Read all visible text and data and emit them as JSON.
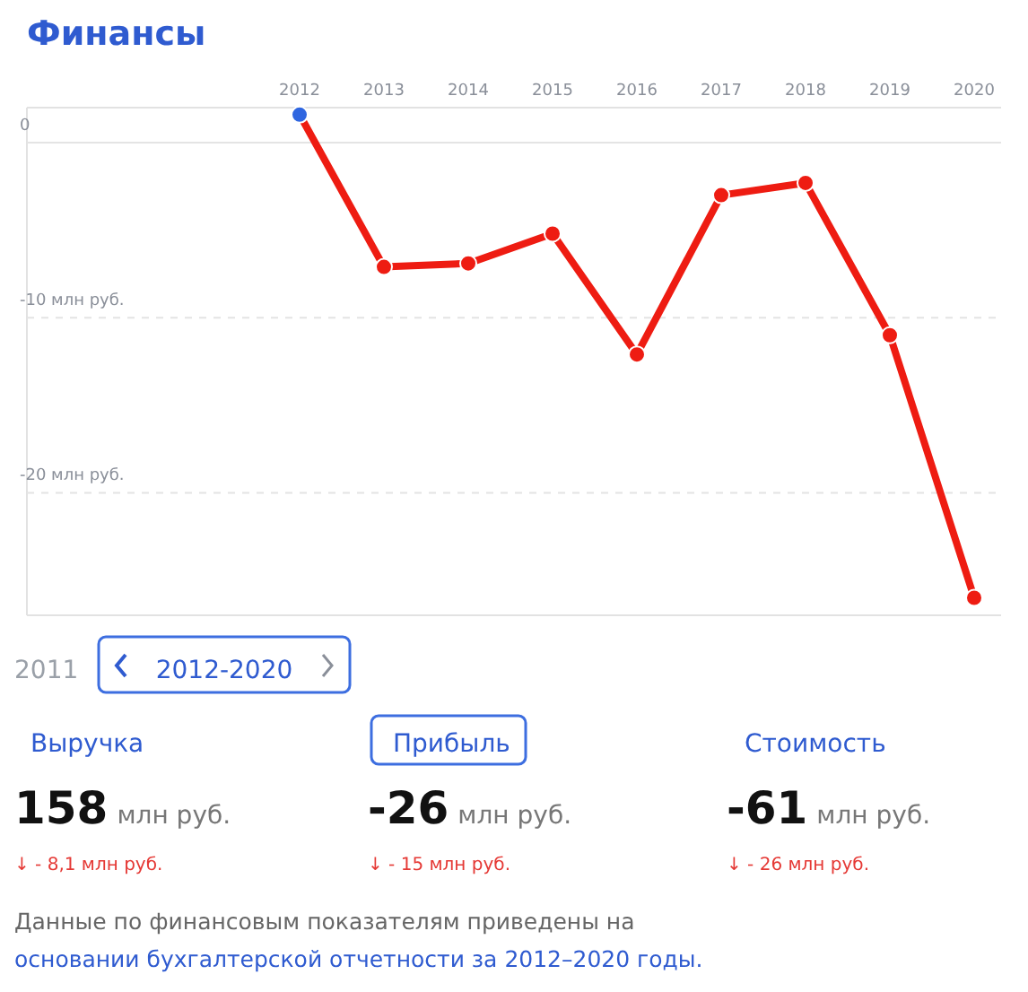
{
  "chart_data": [
    {
      "type": "line",
      "title": "Финансы",
      "categories": [
        "2012",
        "2013",
        "2014",
        "2015",
        "2016",
        "2017",
        "2018",
        "2019",
        "2020"
      ],
      "series": [
        {
          "color": "#ee1c12",
          "colors": [
            "#2f66e0",
            "#ee1c12",
            "#ee1c12",
            "#ee1c12",
            "#ee1c12",
            "#ee1c12",
            "#ee1c12",
            "#ee1c12",
            "#ee1c12"
          ],
          "values": [
            1.6,
            -7.1,
            -6.9,
            -5.2,
            -12.1,
            -3.0,
            -2.3,
            -11.0,
            -26
          ]
        }
      ],
      "ylim": [
        -27,
        2
      ],
      "yticks": [
        {
          "value": 0,
          "label": "0"
        },
        {
          "value": -10,
          "label": "-10 млн руб."
        },
        {
          "value": -20,
          "label": "-20 млн руб."
        }
      ],
      "grid": "y",
      "marker": "circle",
      "line_style": "solid"
    },
    {
      "type": "other",
      "annotations": [
        "2011",
        "2012-2020",
        "Выручка",
        "Прибыль",
        "Стоимость",
        "158",
        "млн руб.",
        "-26",
        "млн руб.",
        "-61",
        "млн руб.",
        "↓ - 8,1 млн руб.",
        "↓ - 15 млн руб.",
        "↓ - 26 млн руб.",
        "Данные по финансовым показателям приведены на",
        "основании бухгалтерской отчетности за 2012–2020 годы."
      ]
    }
  ]
}
